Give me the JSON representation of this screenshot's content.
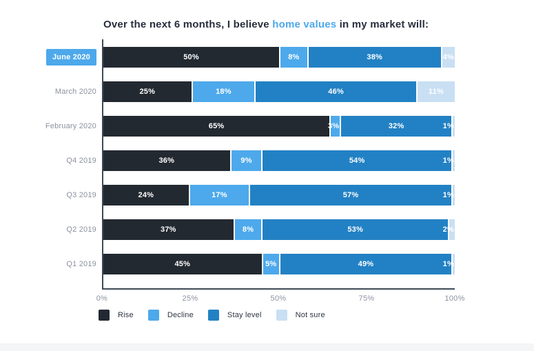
{
  "title": {
    "prefix": "Over the next 6 months, I believe ",
    "highlight": "home values",
    "suffix": " in my market will:"
  },
  "chart_data": {
    "type": "bar",
    "orientation": "horizontal",
    "stacked": true,
    "title": "Over the next 6 months, I believe home values in my market will:",
    "categories": [
      "June 2020",
      "March 2020",
      "February 2020",
      "Q4 2019",
      "Q3 2019",
      "Q2 2019",
      "Q1 2019"
    ],
    "series": [
      {
        "name": "Rise",
        "color": "#232931",
        "values": [
          50,
          25,
          65,
          36,
          24,
          37,
          45
        ]
      },
      {
        "name": "Decline",
        "color": "#4DA9EB",
        "values": [
          8,
          18,
          3,
          9,
          17,
          8,
          5
        ]
      },
      {
        "name": "Stay level",
        "color": "#2281C4",
        "values": [
          38,
          46,
          32,
          54,
          57,
          53,
          49
        ]
      },
      {
        "name": "Not sure",
        "color": "#C9DFF3",
        "values": [
          4,
          11,
          1,
          1,
          1,
          2,
          1
        ]
      }
    ],
    "x_ticks": [
      "0%",
      "25%",
      "50%",
      "75%",
      "100%"
    ],
    "x_tick_positions": [
      0,
      25,
      50,
      75,
      100
    ],
    "xlim": [
      0,
      100
    ],
    "grid": false,
    "legend_position": "bottom",
    "highlighted_category": "June 2020",
    "value_label_suffix": "%"
  },
  "colors": {
    "highlight_accent": "#4DA9EB",
    "axis_line": "#3E4956",
    "tick_text": "#8B919E",
    "title_text": "#272E3D",
    "legend_text": "#2B3340",
    "bar_label_text": "#ffffff"
  }
}
